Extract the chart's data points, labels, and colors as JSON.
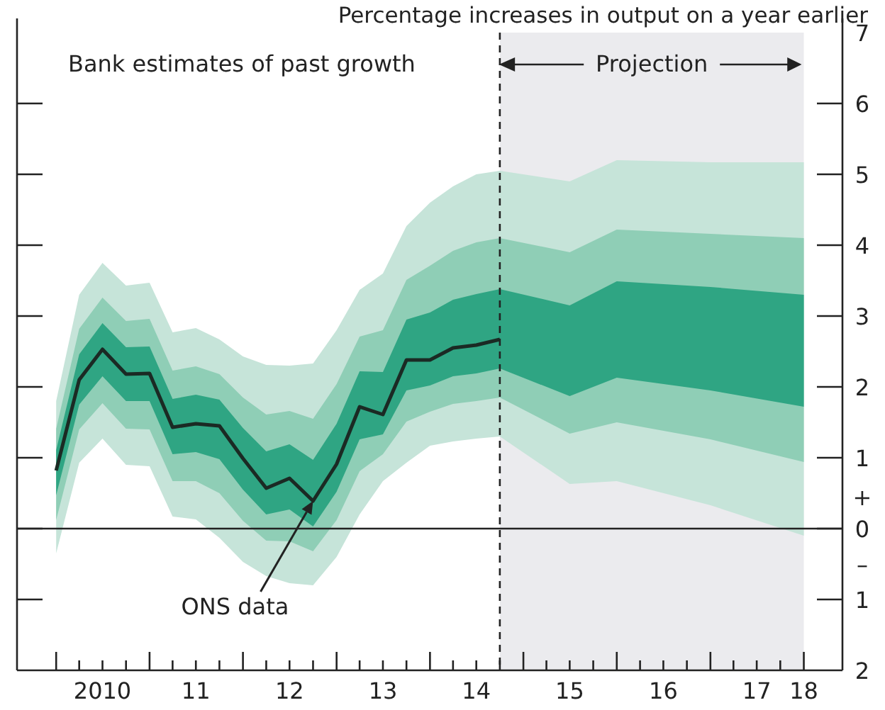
{
  "chart_data": {
    "type": "line",
    "title": "Percentage increases in output on a year earlier",
    "xlim": [
      "2009-08",
      "2018-06"
    ],
    "ylim": [
      -2,
      7
    ],
    "xticks": [
      {
        "value": "2010-01",
        "label": null
      },
      {
        "value": "2010-04",
        "label": null
      },
      {
        "value": "2010-07",
        "label": "2010"
      },
      {
        "value": "2010-10",
        "label": null
      },
      {
        "value": "2011-01",
        "label": null
      },
      {
        "value": "2011-04",
        "label": null
      },
      {
        "value": "2011-07",
        "label": "11"
      },
      {
        "value": "2011-10",
        "label": null
      },
      {
        "value": "2012-01",
        "label": null
      },
      {
        "value": "2012-04",
        "label": null
      },
      {
        "value": "2012-07",
        "label": "12"
      },
      {
        "value": "2012-10",
        "label": null
      },
      {
        "value": "2013-01",
        "label": null
      },
      {
        "value": "2013-04",
        "label": null
      },
      {
        "value": "2013-07",
        "label": "13"
      },
      {
        "value": "2013-10",
        "label": null
      },
      {
        "value": "2014-01",
        "label": null
      },
      {
        "value": "2014-04",
        "label": null
      },
      {
        "value": "2014-07",
        "label": "14"
      },
      {
        "value": "2014-10",
        "label": null
      },
      {
        "value": "2015-01",
        "label": null
      },
      {
        "value": "2015-04",
        "label": null
      },
      {
        "value": "2015-07",
        "label": "15"
      },
      {
        "value": "2015-10",
        "label": null
      },
      {
        "value": "2016-01",
        "label": null
      },
      {
        "value": "2016-04",
        "label": null
      },
      {
        "value": "2016-07",
        "label": "16"
      },
      {
        "value": "2016-10",
        "label": null
      },
      {
        "value": "2017-01",
        "label": null
      },
      {
        "value": "2017-04",
        "label": null
      },
      {
        "value": "2017-07",
        "label": "17"
      },
      {
        "value": "2017-10",
        "label": null
      },
      {
        "value": "2018-01",
        "label": "18"
      }
    ],
    "yticks": [
      {
        "value": -2,
        "label": "2"
      },
      {
        "value": -1,
        "label": "1"
      },
      {
        "value": -0.5,
        "label": "–"
      },
      0,
      {
        "value": 0.45,
        "label": "+"
      },
      1,
      2,
      3,
      4,
      5,
      6,
      7
    ],
    "bands": [
      {
        "axis": "x",
        "from": "2014-10",
        "to": "2018-01",
        "color": "#ebebee",
        "label": "Projection"
      }
    ],
    "ref_lines": [
      {
        "axis": "x",
        "value": "2014-10",
        "line_style": "dashed",
        "color": "#222222"
      },
      {
        "axis": "y",
        "value": 0,
        "color": "#222222"
      }
    ],
    "annotations": [
      "Bank estimates of past growth",
      {
        "text": "ONS data",
        "x": "2012-10",
        "y": 0.39
      }
    ],
    "x": [
      "2010-01",
      "2010-04",
      "2010-07",
      "2010-10",
      "2011-01",
      "2011-04",
      "2011-07",
      "2011-10",
      "2012-01",
      "2012-04",
      "2012-07",
      "2012-10",
      "2013-01",
      "2013-04",
      "2013-07",
      "2013-10",
      "2014-01",
      "2014-04",
      "2014-07",
      "2014-10",
      "2015-07",
      "2016-01",
      "2017-01",
      "2018-01"
    ],
    "series": [
      {
        "color": "#c6e4d9",
        "values": [
          null,
          null,
          null,
          null,
          null,
          null,
          null,
          null,
          null,
          null,
          null,
          null,
          null,
          null,
          null,
          null,
          null,
          null,
          null,
          null,
          null,
          null,
          null,
          null
        ],
        "lower": [
          -0.35,
          0.93,
          1.27,
          0.9,
          0.88,
          0.17,
          0.13,
          -0.13,
          -0.47,
          -0.67,
          -0.77,
          -0.8,
          -0.4,
          0.2,
          0.67,
          0.93,
          1.17,
          1.23,
          1.27,
          1.3,
          0.63,
          0.67,
          0.33,
          -0.1
        ],
        "upper": [
          1.8,
          3.3,
          3.75,
          3.43,
          3.47,
          2.77,
          2.83,
          2.67,
          2.43,
          2.31,
          2.3,
          2.33,
          2.8,
          3.37,
          3.6,
          4.27,
          4.6,
          4.83,
          5.0,
          5.05,
          4.9,
          5.2,
          5.17,
          5.17
        ]
      },
      {
        "color": "#8fceb6",
        "values": [
          null,
          null,
          null,
          null,
          null,
          null,
          null,
          null,
          null,
          null,
          null,
          null,
          null,
          null,
          null,
          null,
          null,
          null,
          null,
          null,
          null,
          null,
          null,
          null
        ],
        "lower": [
          0.12,
          1.4,
          1.77,
          1.41,
          1.4,
          0.67,
          0.67,
          0.5,
          0.11,
          -0.17,
          -0.18,
          -0.32,
          0.12,
          0.81,
          1.05,
          1.51,
          1.65,
          1.76,
          1.8,
          1.85,
          1.34,
          1.5,
          1.26,
          0.94
        ],
        "upper": [
          1.41,
          2.82,
          3.26,
          2.93,
          2.96,
          2.23,
          2.29,
          2.18,
          1.85,
          1.61,
          1.66,
          1.55,
          2.04,
          2.71,
          2.8,
          3.51,
          3.71,
          3.92,
          4.04,
          4.1,
          3.9,
          4.22,
          4.16,
          4.1
        ]
      },
      {
        "color": "#2fa583",
        "values": [
          null,
          null,
          null,
          null,
          null,
          null,
          null,
          null,
          null,
          null,
          null,
          null,
          null,
          null,
          null,
          null,
          null,
          null,
          null,
          null,
          null,
          null,
          null,
          null
        ],
        "lower": [
          0.47,
          1.75,
          2.15,
          1.8,
          1.8,
          1.05,
          1.08,
          0.98,
          0.55,
          0.2,
          0.27,
          0.03,
          0.52,
          1.26,
          1.33,
          1.95,
          2.02,
          2.15,
          2.19,
          2.26,
          1.87,
          2.13,
          1.95,
          1.72
        ],
        "upper": [
          1.11,
          2.46,
          2.9,
          2.56,
          2.57,
          1.83,
          1.89,
          1.82,
          1.42,
          1.09,
          1.19,
          0.97,
          1.48,
          2.22,
          2.21,
          2.95,
          3.05,
          3.23,
          3.31,
          3.38,
          3.15,
          3.49,
          3.41,
          3.3
        ]
      },
      {
        "color": "#1b2a24",
        "x": [
          "2010-01",
          "2010-04",
          "2010-07",
          "2010-10",
          "2011-01",
          "2011-04",
          "2011-07",
          "2011-10",
          "2012-01",
          "2012-04",
          "2012-07",
          "2012-10",
          "2013-01",
          "2013-04",
          "2013-07",
          "2013-10",
          "2014-01",
          "2014-04",
          "2014-07",
          "2014-10"
        ],
        "values": [
          0.82,
          2.1,
          2.53,
          2.18,
          2.19,
          1.43,
          1.48,
          1.45,
          0.99,
          0.57,
          0.71,
          0.39,
          0.91,
          1.72,
          1.61,
          2.38,
          2.38,
          2.55,
          2.59,
          2.67
        ]
      }
    ]
  }
}
